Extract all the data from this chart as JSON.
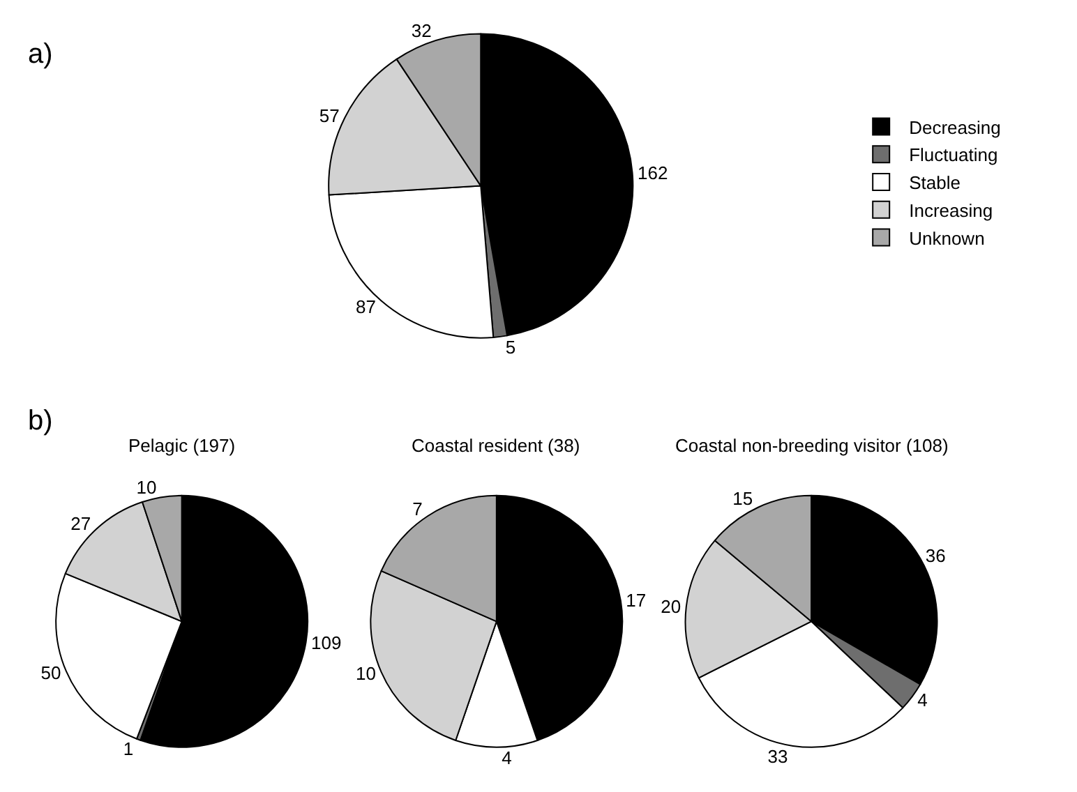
{
  "chart_data": [
    {
      "type": "pie",
      "annotations": [
        "a)"
      ],
      "categories": [
        "Decreasing",
        "Fluctuating",
        "Stable",
        "Increasing",
        "Unknown"
      ],
      "values": [
        162,
        5,
        87,
        57,
        32
      ],
      "colors": [
        "#000000",
        "#6e6e6e",
        "#ffffff",
        "#d2d2d2",
        "#a8a8a8"
      ],
      "data_labels": true,
      "legend": "right"
    },
    {
      "type": "pie",
      "title": "Pelagic (197)",
      "annotations": [
        "b)"
      ],
      "categories": [
        null,
        null,
        null,
        null,
        null
      ],
      "values": [
        109,
        1,
        50,
        27,
        10
      ],
      "colors": [
        "#000000",
        "#6e6e6e",
        "#ffffff",
        "#d2d2d2",
        "#a8a8a8"
      ],
      "data_labels": true
    },
    {
      "type": "pie",
      "title": "Coastal resident (38)",
      "categories": [
        null,
        null,
        null,
        null,
        null
      ],
      "values": [
        17,
        null,
        4,
        10,
        7
      ],
      "value_labels": [
        "17",
        null,
        "4",
        "10",
        "7"
      ],
      "colors": [
        "#000000",
        "#6e6e6e",
        "#ffffff",
        "#d2d2d2",
        "#a8a8a8"
      ]
    },
    {
      "type": "pie",
      "title": "Coastal non-breeding visitor (108)",
      "categories": [
        null,
        null,
        null,
        null,
        null
      ],
      "values": [
        36,
        4,
        33,
        20,
        15
      ],
      "colors": [
        "#000000",
        "#6e6e6e",
        "#ffffff",
        "#d2d2d2",
        "#a8a8a8"
      ],
      "data_labels": true
    }
  ]
}
